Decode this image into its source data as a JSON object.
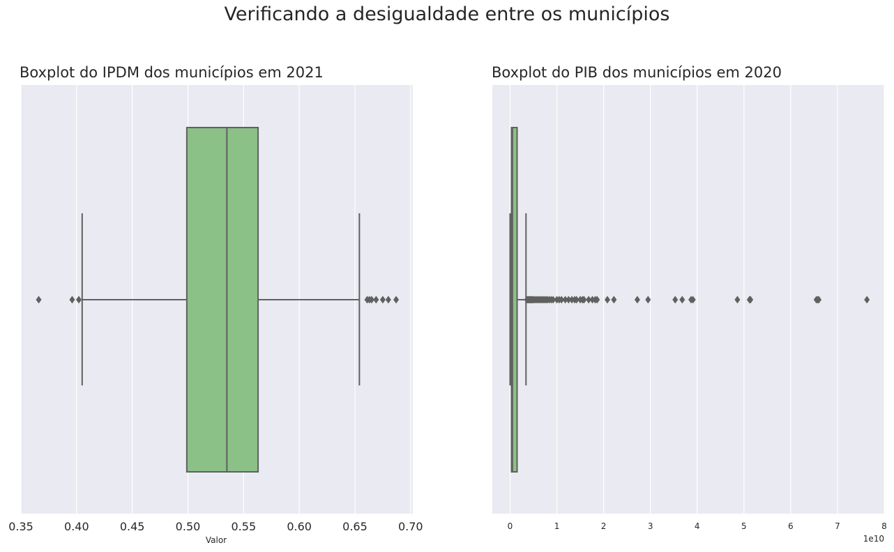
{
  "figure": {
    "suptitle": "Verificando a desigualdade entre os municípios"
  },
  "colors": {
    "panel_bg": "#EAEAF2",
    "grid": "#FFFFFF",
    "box_fill": "#8BC086",
    "box_line": "#606060",
    "outlier": "#606060"
  },
  "chart_data": [
    {
      "type": "boxplot",
      "title": "Boxplot do IPDM dos municípios em 2021",
      "xlabel": "Valor",
      "ylabel": "",
      "orientation": "horizontal",
      "xlim": [
        0.35,
        0.702
      ],
      "xticks": [
        0.35,
        0.4,
        0.45,
        0.5,
        0.55,
        0.6,
        0.65,
        0.7
      ],
      "xtick_labels": [
        "0.35",
        "0.40",
        "0.45",
        "0.50",
        "0.55",
        "0.60",
        "0.65",
        "0.70"
      ],
      "grid": true,
      "stats": {
        "whisker_low": 0.405,
        "q1": 0.499,
        "median": 0.535,
        "q3": 0.563,
        "whisker_high": 0.654
      },
      "outliers": [
        0.366,
        0.396,
        0.402,
        0.661,
        0.663,
        0.665,
        0.669,
        0.675,
        0.68,
        0.687
      ]
    },
    {
      "type": "boxplot",
      "title": "Boxplot do PIB dos municípios em 2020",
      "xlabel": "",
      "ylabel": "",
      "orientation": "horizontal",
      "xlim": [
        -0.38,
        8.0
      ],
      "xticks": [
        0,
        1,
        2,
        3,
        4,
        5,
        6,
        7,
        8
      ],
      "xtick_labels": [
        "0",
        "1",
        "2",
        "3",
        "4",
        "5",
        "6",
        "7",
        "8"
      ],
      "scale_label": "1e10",
      "grid": true,
      "stats": {
        "whisker_low": 0.0,
        "q1": 0.03,
        "median": 0.05,
        "q3": 0.15,
        "whisker_high": 0.34
      },
      "outliers": [
        0.36,
        0.38,
        0.4,
        0.42,
        0.44,
        0.46,
        0.48,
        0.5,
        0.53,
        0.56,
        0.59,
        0.62,
        0.65,
        0.68,
        0.71,
        0.74,
        0.77,
        0.8,
        0.84,
        0.88,
        0.92,
        1.0,
        1.05,
        1.1,
        1.18,
        1.25,
        1.32,
        1.38,
        1.42,
        1.5,
        1.55,
        1.58,
        1.68,
        1.76,
        1.82,
        1.86,
        2.08,
        2.22,
        2.72,
        2.95,
        3.53,
        3.68,
        3.87,
        3.91,
        4.86,
        5.12,
        5.14,
        6.55,
        6.58,
        6.6,
        7.63
      ]
    }
  ]
}
